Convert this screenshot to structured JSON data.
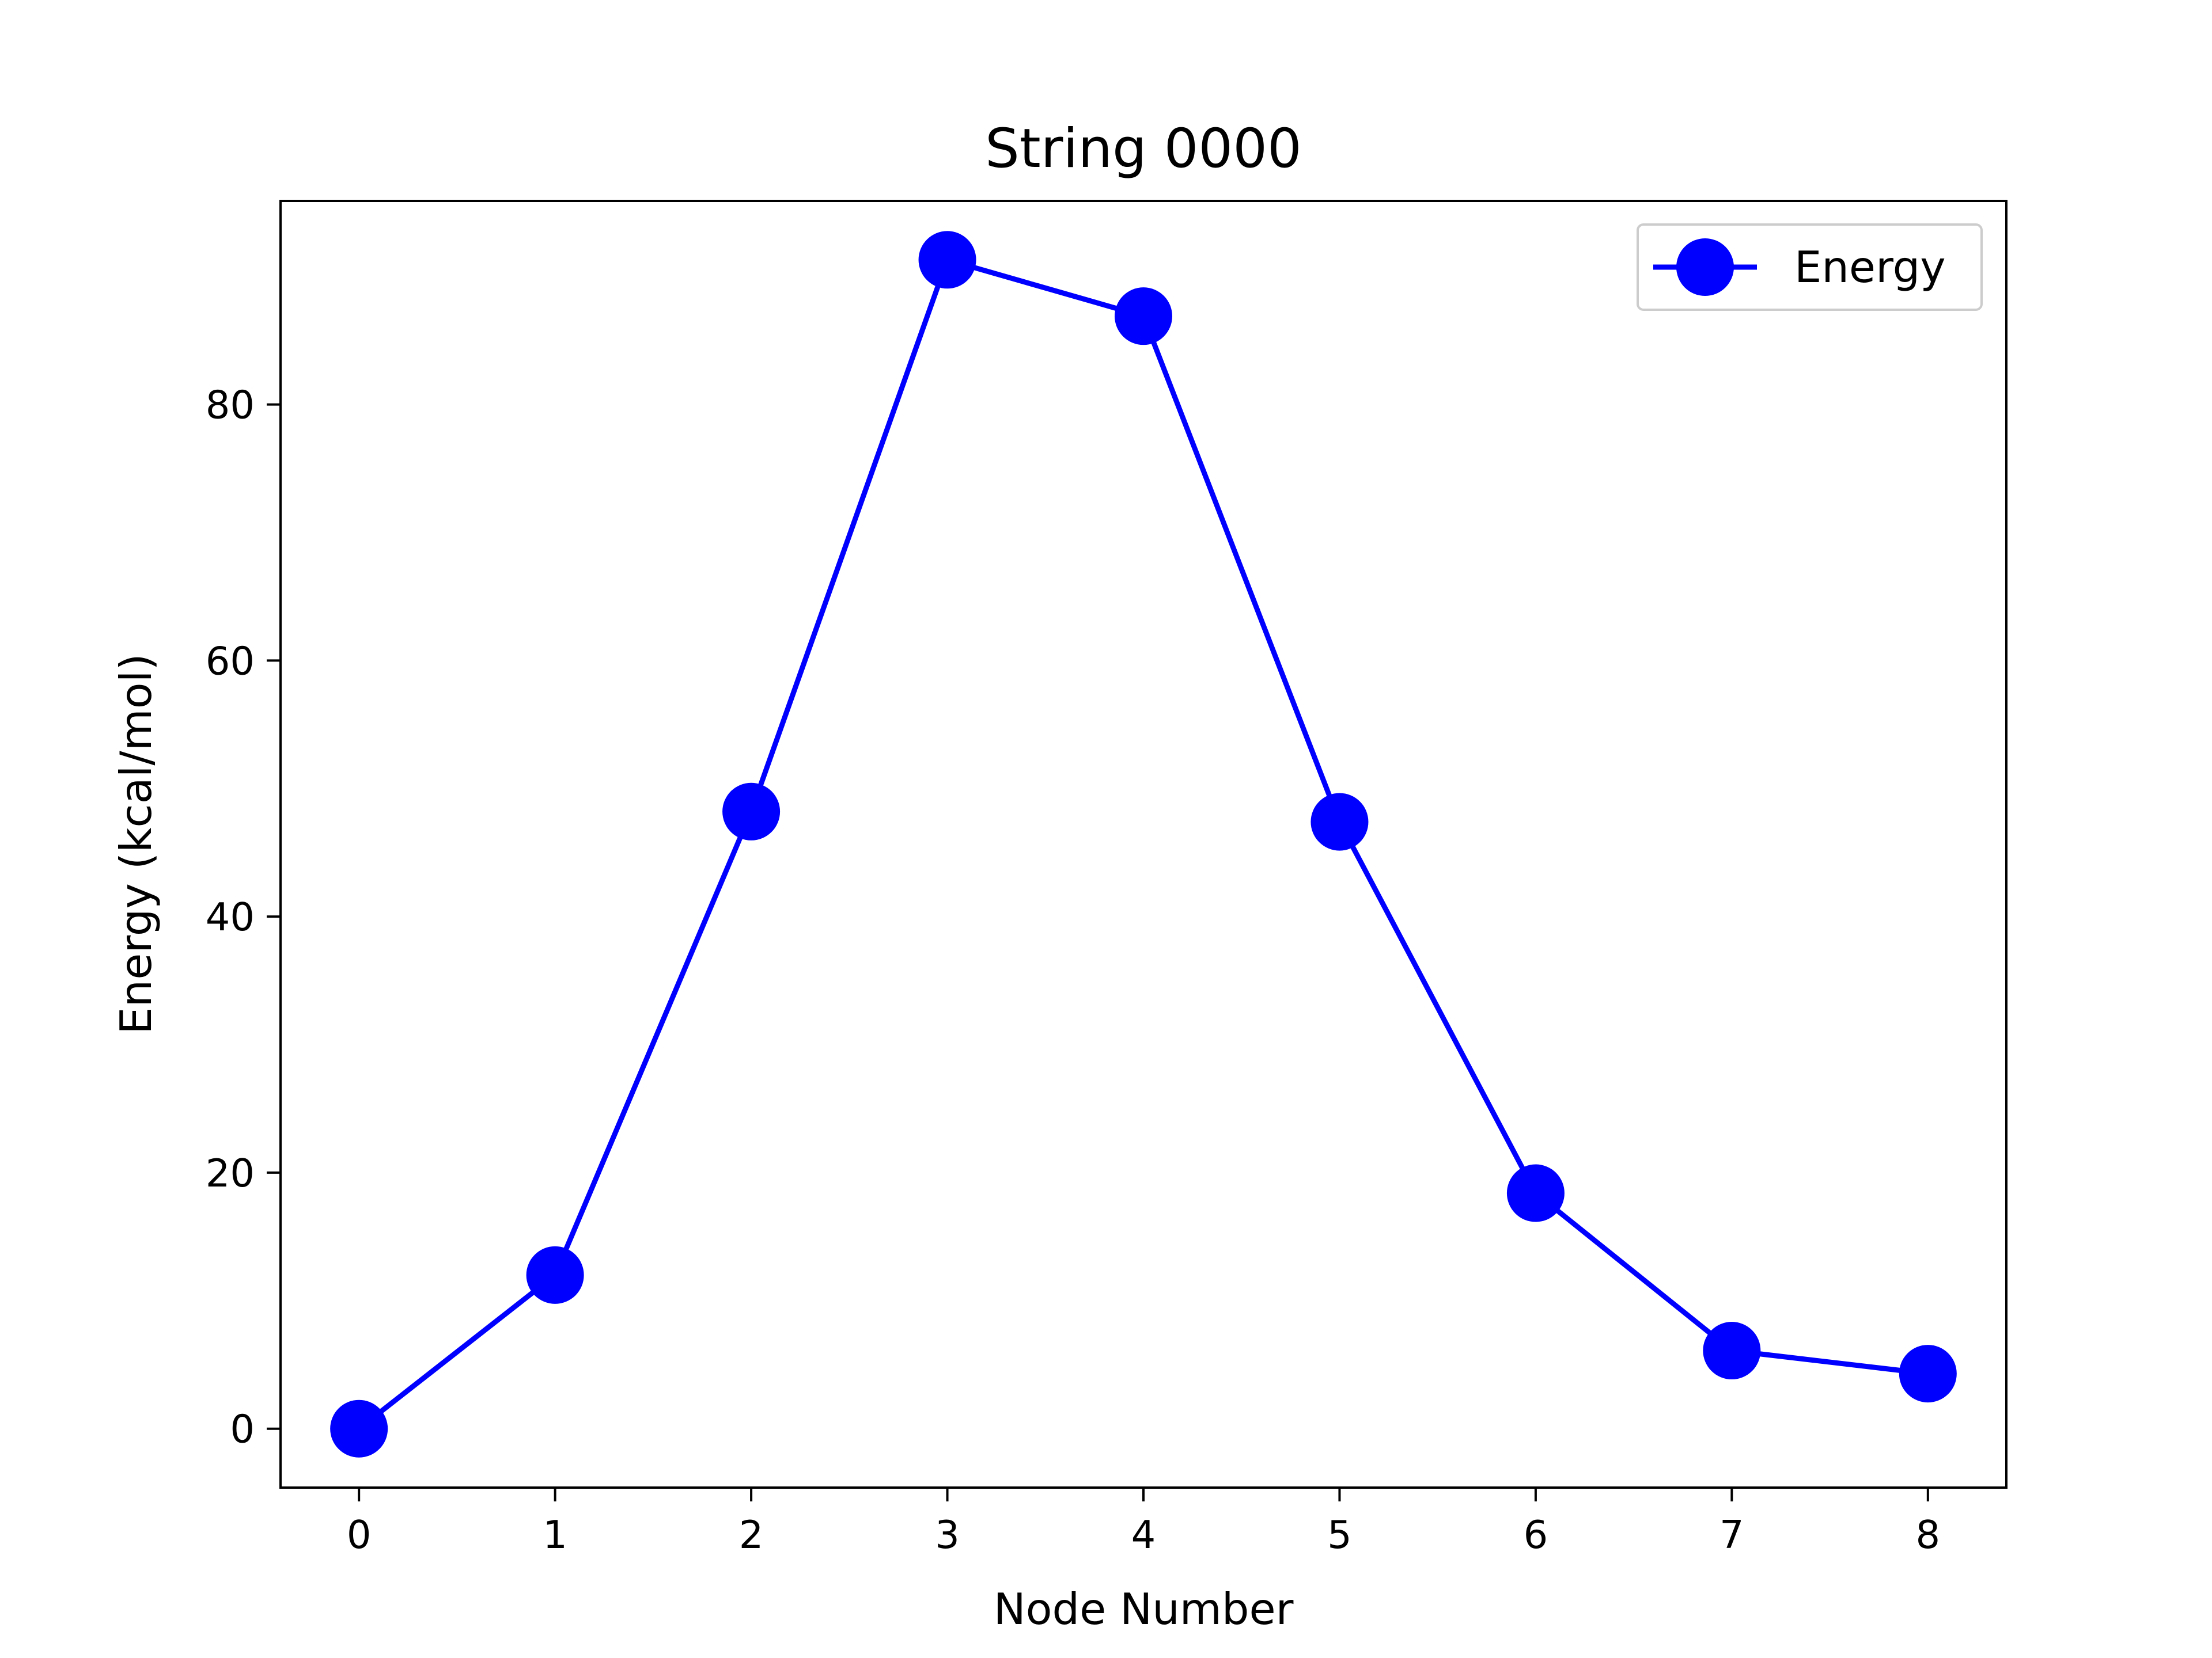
{
  "chart_data": {
    "type": "line",
    "title": "String 0000",
    "xlabel": "Node Number",
    "ylabel": "Energy (kcal/mol)",
    "x": [
      0,
      1,
      2,
      3,
      4,
      5,
      6,
      7,
      8
    ],
    "series": [
      {
        "name": "Energy",
        "values": [
          0.0,
          12.0,
          48.2,
          91.3,
          86.9,
          47.4,
          18.4,
          6.1,
          4.3
        ],
        "color": "#0000ff",
        "marker": "circle"
      }
    ],
    "xticks": [
      0,
      1,
      2,
      3,
      4,
      5,
      6,
      7,
      8
    ],
    "yticks": [
      0,
      20,
      40,
      60,
      80
    ],
    "xlim": [
      -0.4,
      8.4
    ],
    "ylim": [
      -4.6,
      95.9
    ],
    "grid": false,
    "legend_position": "top-right"
  }
}
